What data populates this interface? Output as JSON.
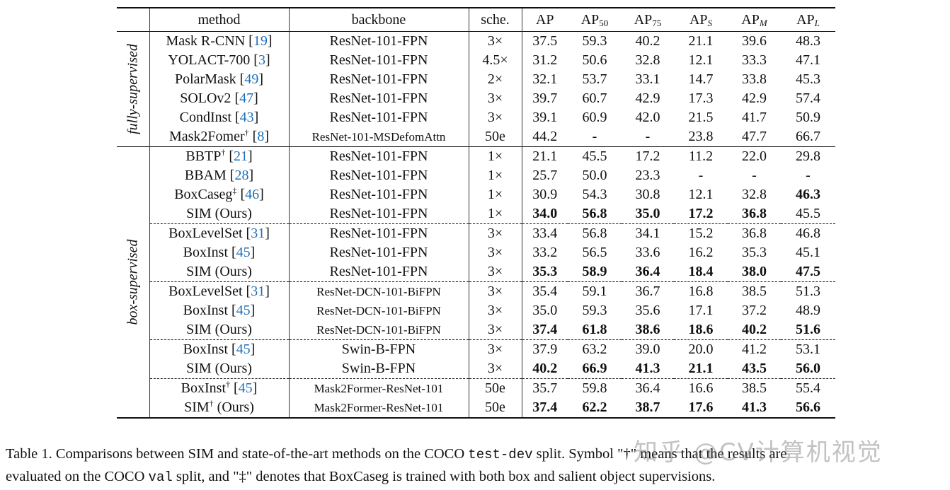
{
  "header": {
    "method": "method",
    "backbone": "backbone",
    "sche": "sche.",
    "ap": "AP",
    "ap50": {
      "base": "AP",
      "sub": "50"
    },
    "ap75": {
      "base": "AP",
      "sub": "75"
    },
    "aps": {
      "base": "AP",
      "sub": "S"
    },
    "apm": {
      "base": "AP",
      "sub": "M"
    },
    "apl": {
      "base": "AP",
      "sub": "L"
    }
  },
  "groups": {
    "fully": "fully-supervised",
    "box": "box-supervised"
  },
  "rows": [
    {
      "name": "Mask R-CNN",
      "sup": "",
      "cite": "19",
      "suffix": "",
      "backbone": "ResNet-101-FPN",
      "sche": "3×",
      "ap": "37.5",
      "ap50": "59.3",
      "ap75": "40.2",
      "aps": "21.1",
      "apm": "39.6",
      "apl": "48.3"
    },
    {
      "name": "YOLACT-700",
      "sup": "",
      "cite": "3",
      "suffix": "",
      "backbone": "ResNet-101-FPN",
      "sche": "4.5×",
      "ap": "31.2",
      "ap50": "50.6",
      "ap75": "32.8",
      "aps": "12.1",
      "apm": "33.3",
      "apl": "47.1"
    },
    {
      "name": "PolarMask",
      "sup": "",
      "cite": "49",
      "suffix": "",
      "backbone": "ResNet-101-FPN",
      "sche": "2×",
      "ap": "32.1",
      "ap50": "53.7",
      "ap75": "33.1",
      "aps": "14.7",
      "apm": "33.8",
      "apl": "45.3"
    },
    {
      "name": "SOLOv2",
      "sup": "",
      "cite": "47",
      "suffix": "",
      "backbone": "ResNet-101-FPN",
      "sche": "3×",
      "ap": "39.7",
      "ap50": "60.7",
      "ap75": "42.9",
      "aps": "17.3",
      "apm": "42.9",
      "apl": "57.4"
    },
    {
      "name": "CondInst",
      "sup": "",
      "cite": "43",
      "suffix": "",
      "backbone": "ResNet-101-FPN",
      "sche": "3×",
      "ap": "39.1",
      "ap50": "60.9",
      "ap75": "42.0",
      "aps": "21.5",
      "apm": "41.7",
      "apl": "50.9"
    },
    {
      "name": "Mask2Fomer",
      "sup": "†",
      "cite": "8",
      "suffix": "",
      "backbone": "ResNet-101-MSDefomAttn",
      "sche": "50e",
      "ap": "44.2",
      "ap50": "-",
      "ap75": "-",
      "aps": "23.8",
      "apm": "47.7",
      "apl": "66.7"
    },
    {
      "name": "BBTP",
      "sup": "†",
      "cite": "21",
      "suffix": "",
      "backbone": "ResNet-101-FPN",
      "sche": "1×",
      "ap": "21.1",
      "ap50": "45.5",
      "ap75": "17.2",
      "aps": "11.2",
      "apm": "22.0",
      "apl": "29.8"
    },
    {
      "name": "BBAM",
      "sup": "",
      "cite": "28",
      "suffix": "",
      "backbone": "ResNet-101-FPN",
      "sche": "1×",
      "ap": "25.7",
      "ap50": "50.0",
      "ap75": "23.3",
      "aps": "-",
      "apm": "-",
      "apl": "-"
    },
    {
      "name": "BoxCaseg",
      "sup": "‡",
      "cite": "46",
      "suffix": "",
      "backbone": "ResNet-101-FPN",
      "sche": "1×",
      "ap": "30.9",
      "ap50": "54.3",
      "ap75": "30.8",
      "aps": "12.1",
      "apm": "32.8",
      "apl": "46.3"
    },
    {
      "name": "SIM (Ours)",
      "sup": "",
      "cite": "",
      "suffix": "",
      "backbone": "ResNet-101-FPN",
      "sche": "1×",
      "ap": "34.0",
      "ap50": "56.8",
      "ap75": "35.0",
      "aps": "17.2",
      "apm": "36.8",
      "apl": "45.5"
    },
    {
      "name": "BoxLevelSet",
      "sup": "",
      "cite": "31",
      "suffix": "",
      "backbone": "ResNet-101-FPN",
      "sche": "3×",
      "ap": "33.4",
      "ap50": "56.8",
      "ap75": "34.1",
      "aps": "15.2",
      "apm": "36.8",
      "apl": "46.8"
    },
    {
      "name": "BoxInst",
      "sup": "",
      "cite": "45",
      "suffix": "",
      "backbone": "ResNet-101-FPN",
      "sche": "3×",
      "ap": "33.2",
      "ap50": "56.5",
      "ap75": "33.6",
      "aps": "16.2",
      "apm": "35.3",
      "apl": "45.1"
    },
    {
      "name": "SIM (Ours)",
      "sup": "",
      "cite": "",
      "suffix": "",
      "backbone": "ResNet-101-FPN",
      "sche": "3×",
      "ap": "35.3",
      "ap50": "58.9",
      "ap75": "36.4",
      "aps": "18.4",
      "apm": "38.0",
      "apl": "47.5"
    },
    {
      "name": "BoxLevelSet",
      "sup": "",
      "cite": "31",
      "suffix": "",
      "backbone": "ResNet-DCN-101-BiFPN",
      "sche": "3×",
      "ap": "35.4",
      "ap50": "59.1",
      "ap75": "36.7",
      "aps": "16.8",
      "apm": "38.5",
      "apl": "51.3"
    },
    {
      "name": "BoxInst",
      "sup": "",
      "cite": "45",
      "suffix": "",
      "backbone": "ResNet-DCN-101-BiFPN",
      "sche": "3×",
      "ap": "35.0",
      "ap50": "59.3",
      "ap75": "35.6",
      "aps": "17.1",
      "apm": "37.2",
      "apl": "48.9"
    },
    {
      "name": "SIM (Ours)",
      "sup": "",
      "cite": "",
      "suffix": "",
      "backbone": "ResNet-DCN-101-BiFPN",
      "sche": "3×",
      "ap": "37.4",
      "ap50": "61.8",
      "ap75": "38.6",
      "aps": "18.6",
      "apm": "40.2",
      "apl": "51.6"
    },
    {
      "name": "BoxInst",
      "sup": "",
      "cite": "45",
      "suffix": "",
      "backbone": "Swin-B-FPN",
      "sche": "3×",
      "ap": "37.9",
      "ap50": "63.2",
      "ap75": "39.0",
      "aps": "20.0",
      "apm": "41.2",
      "apl": "53.1"
    },
    {
      "name": "SIM (Ours)",
      "sup": "",
      "cite": "",
      "suffix": "",
      "backbone": "Swin-B-FPN",
      "sche": "3×",
      "ap": "40.2",
      "ap50": "66.9",
      "ap75": "41.3",
      "aps": "21.1",
      "apm": "43.5",
      "apl": "56.0"
    },
    {
      "name": "BoxInst",
      "sup": "†",
      "cite": "45",
      "suffix": "",
      "backbone": "Mask2Former-ResNet-101",
      "sche": "50e",
      "ap": "35.7",
      "ap50": "59.8",
      "ap75": "36.4",
      "aps": "16.6",
      "apm": "38.5",
      "apl": "55.4"
    },
    {
      "name": "SIM",
      "sup": "†",
      "cite": "",
      "suffix": " (Ours)",
      "backbone": "Mask2Former-ResNet-101",
      "sche": "50e",
      "ap": "37.4",
      "ap50": "62.2",
      "ap75": "38.7",
      "aps": "17.6",
      "apm": "41.3",
      "apl": "56.6"
    }
  ],
  "bold": {
    "8": [
      "apl"
    ],
    "9": [
      "ap",
      "ap50",
      "ap75",
      "aps",
      "apm"
    ],
    "12": [
      "ap",
      "ap50",
      "ap75",
      "aps",
      "apm",
      "apl"
    ],
    "15": [
      "ap",
      "ap50",
      "ap75",
      "aps",
      "apm",
      "apl"
    ],
    "17": [
      "ap",
      "ap50",
      "ap75",
      "aps",
      "apm",
      "apl"
    ],
    "19": [
      "ap",
      "ap50",
      "ap75",
      "aps",
      "apm",
      "apl"
    ]
  },
  "caption": {
    "t1": "Table 1. Comparisons between SIM and state-of-the-art methods on the COCO ",
    "code1": "test-dev",
    "t2": " split. Symbol \"†\" means that the results are",
    "t3": "evaluated on the COCO ",
    "code2": "val",
    "t4": " split, and \"‡\" denotes that BoxCaseg is trained with both box and salient object supervisions."
  },
  "watermark": "知乎 @CV计算机视觉"
}
